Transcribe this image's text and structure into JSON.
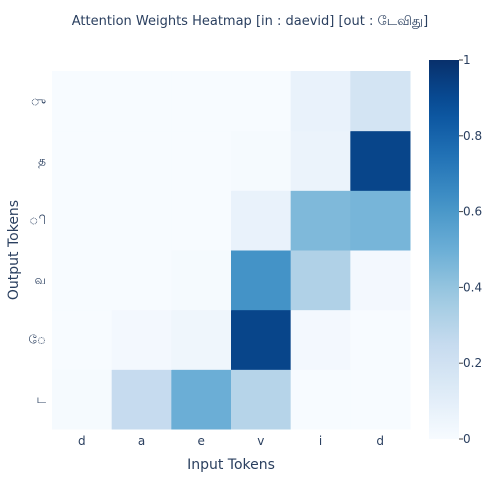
{
  "chart_data": {
    "type": "heatmap",
    "title": "Attention Weights Heatmap [in : daevid] [out : டேவிது]",
    "xlabel": "Input Tokens",
    "ylabel": "Output Tokens",
    "x_categories": [
      "d",
      "a",
      "e",
      "v",
      "i",
      "d"
    ],
    "y_categories": [
      "ட",
      "ே",
      "வ",
      "ி",
      "த",
      "ு"
    ],
    "z": [
      [
        0.01,
        0.25,
        0.5,
        0.3,
        0.0,
        0.0
      ],
      [
        0.0,
        0.02,
        0.04,
        0.92,
        0.02,
        0.0
      ],
      [
        0.0,
        0.0,
        0.01,
        0.62,
        0.32,
        0.02
      ],
      [
        0.0,
        0.0,
        0.0,
        0.07,
        0.45,
        0.47
      ],
      [
        0.0,
        0.0,
        0.0,
        0.01,
        0.06,
        0.92
      ],
      [
        0.0,
        0.0,
        0.0,
        0.0,
        0.07,
        0.18
      ]
    ],
    "zmin": 0,
    "zmax": 1,
    "colorscale": "Blues",
    "colorbar": {
      "ticks": [
        0,
        0.2,
        0.4,
        0.6,
        0.8,
        1
      ],
      "tick_labels": [
        "0",
        "0.2",
        "0.4",
        "0.6",
        "0.8",
        "1"
      ]
    },
    "grid": false
  }
}
